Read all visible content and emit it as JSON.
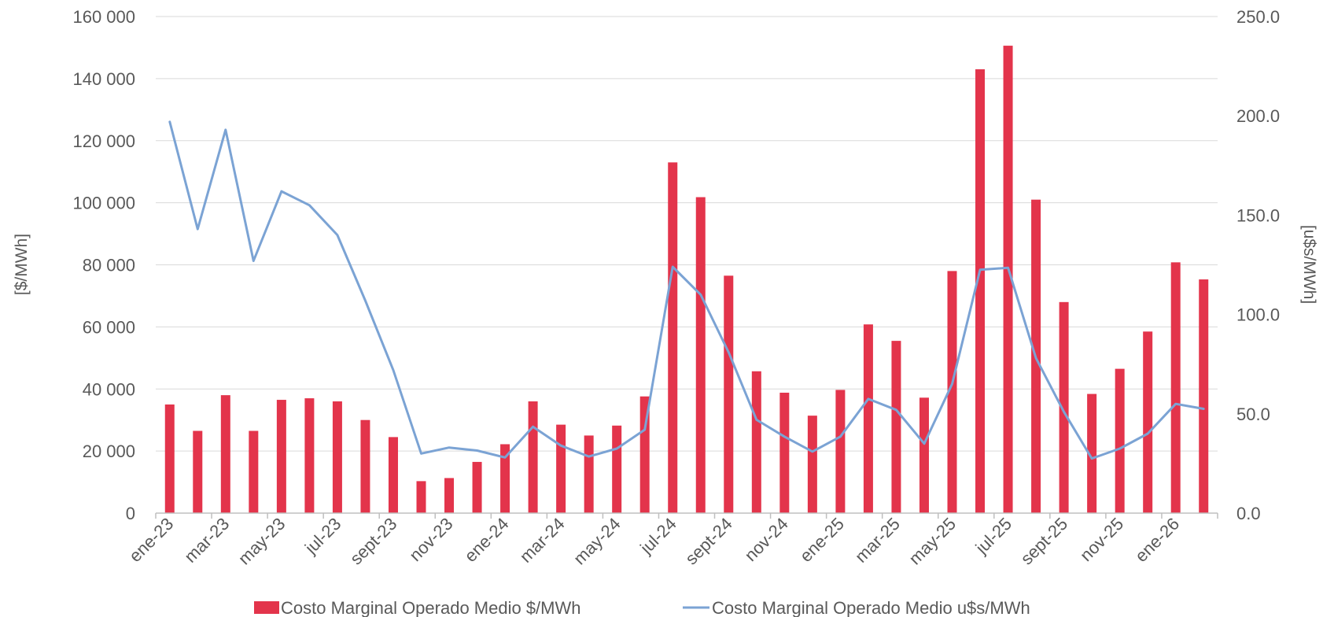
{
  "chart_data": {
    "type": "bar",
    "title": "",
    "ylabel_left": "[$/MWh]",
    "ylabel_right": "[u$s/MWh]",
    "ylim_left": [
      0,
      160000
    ],
    "ylim_right": [
      0,
      250
    ],
    "left_ticks": [
      "0",
      "20 000",
      "40 000",
      "60 000",
      "80 000",
      "100 000",
      "120 000",
      "140 000",
      "160 000"
    ],
    "right_ticks": [
      "0.0",
      "50.0",
      "100.0",
      "150.0",
      "200.0",
      "250.0"
    ],
    "grid": true,
    "legend_position": "bottom",
    "colors": {
      "bars": "#E3344B",
      "line": "#7BA3D4",
      "grid": "#D9D9D9",
      "text": "#595959"
    },
    "categories": [
      "ene-23",
      "feb-23",
      "mar-23",
      "abr-23",
      "may-23",
      "jun-23",
      "jul-23",
      "ago-23",
      "sept-23",
      "oct-23",
      "nov-23",
      "dic-23",
      "ene-24",
      "feb-24",
      "mar-24",
      "abr-24",
      "may-24",
      "jun-24",
      "jul-24",
      "ago-24",
      "sept-24",
      "oct-24",
      "nov-24",
      "dic-24",
      "ene-25",
      "feb-25",
      "mar-25",
      "abr-25",
      "may-25",
      "jun-25",
      "jul-25",
      "ago-25",
      "sept-25",
      "oct-25",
      "nov-25",
      "dic-25",
      "ene-26",
      "feb-26"
    ],
    "x_tick_labels": [
      "ene-23",
      "mar-23",
      "may-23",
      "jul-23",
      "sept-23",
      "nov-23",
      "ene-24",
      "mar-24",
      "may-24",
      "jul-24",
      "sept-24",
      "nov-24",
      "ene-25",
      "mar-25",
      "may-25",
      "jul-25",
      "sept-25",
      "nov-25",
      "ene-26"
    ],
    "series": [
      {
        "name": "Costo Marginal Operado Medio $/MWh",
        "type": "bar",
        "axis": "left",
        "values": [
          35000,
          26500,
          38000,
          26500,
          36500,
          37000,
          36000,
          30000,
          24500,
          10300,
          11300,
          16500,
          22200,
          36000,
          28500,
          25000,
          28200,
          37600,
          113000,
          101800,
          76500,
          45700,
          38800,
          31400,
          39700,
          60800,
          55500,
          37200,
          78000,
          143000,
          150600,
          101000,
          68000,
          38400,
          46500,
          58500,
          80800,
          75300
        ]
      },
      {
        "name": "Costo Marginal Operado Medio u$s/MWh",
        "type": "line",
        "axis": "right",
        "values": [
          197,
          143,
          193,
          127,
          162,
          155,
          140,
          107,
          72,
          30,
          33,
          31.5,
          28,
          43.5,
          34,
          28.5,
          32.5,
          42,
          124,
          110,
          81,
          47,
          38.5,
          31,
          38.5,
          57.5,
          52,
          35,
          65,
          122.5,
          123.5,
          78,
          51,
          27.5,
          32.5,
          40,
          55,
          52.5
        ]
      }
    ]
  }
}
